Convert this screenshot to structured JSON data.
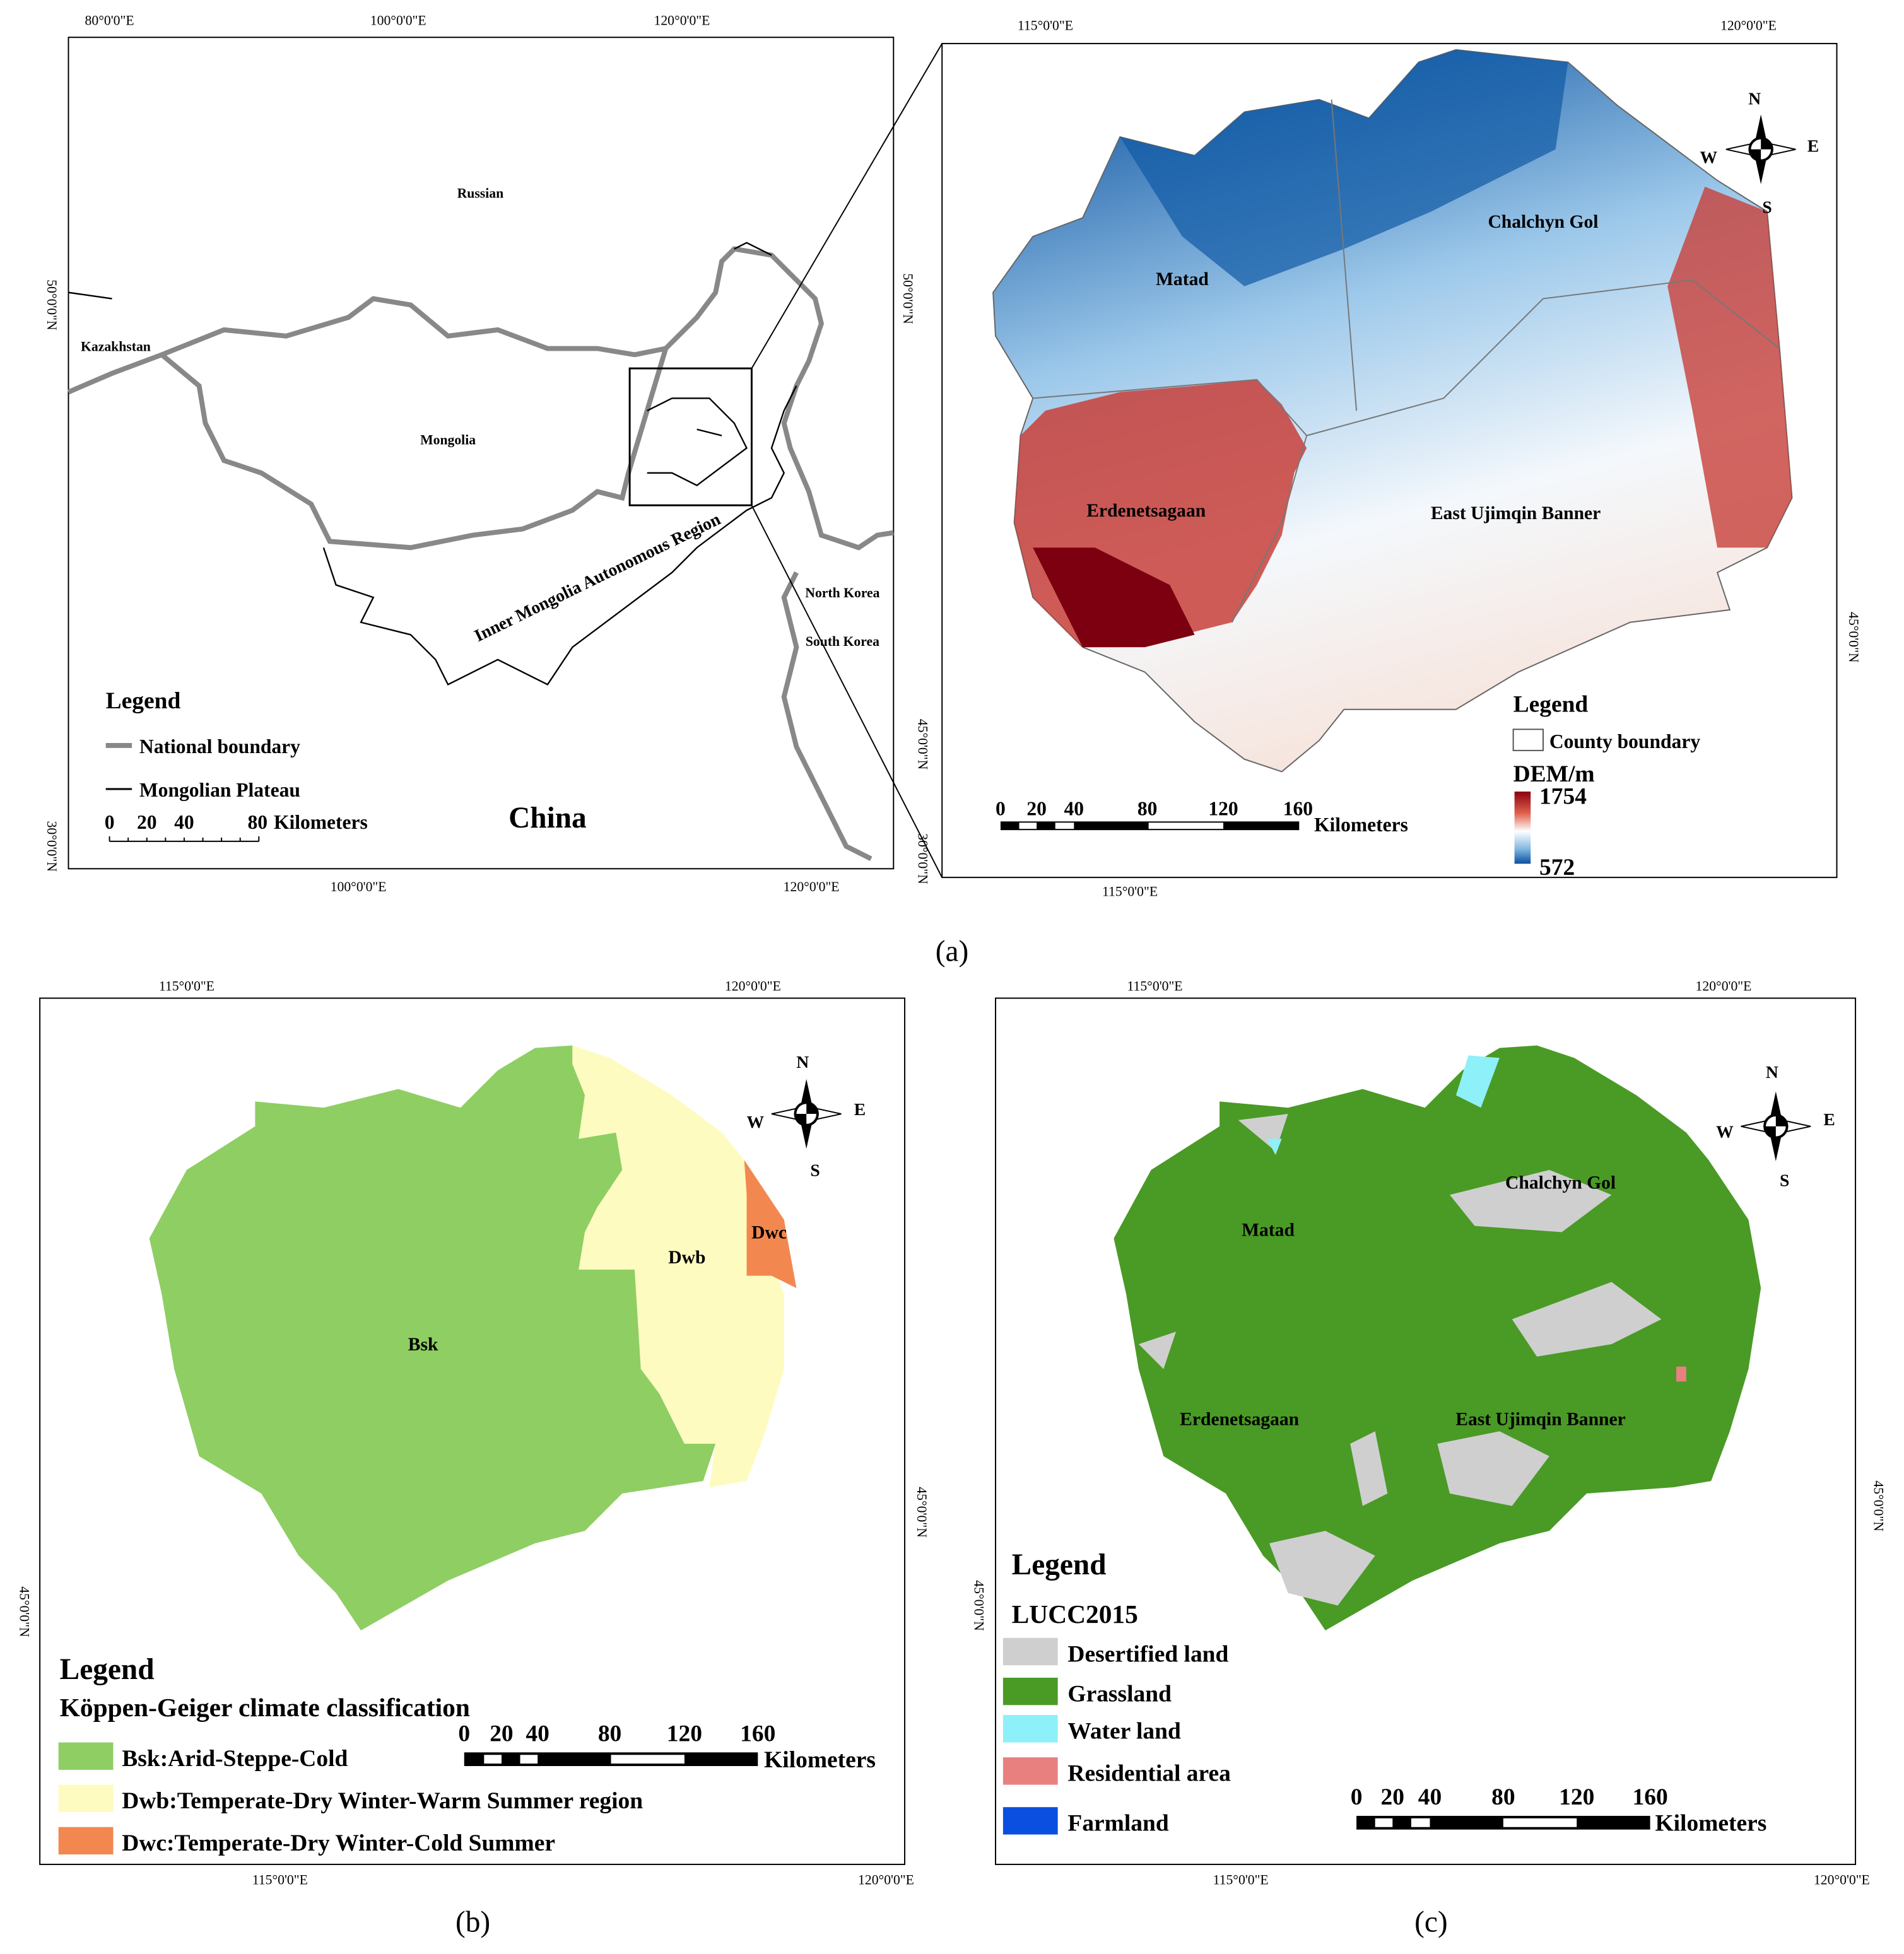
{
  "panel_a": {
    "caption": "(a)",
    "overview": {
      "top_labels": [
        "80°0'0\"E",
        "100°0'0\"E",
        "120°0'0\"E"
      ],
      "bottom_labels": [
        "100°0'0\"E",
        "120°0'0\"E"
      ],
      "left_labels": [
        "50°0'0\"N",
        "30°0'0\"N"
      ],
      "right_labels": [
        "50°0'0\"N",
        "45°0'0\"N",
        "30°0'0\"N"
      ],
      "places": [
        "Russian",
        "Kazakhstan",
        "Mongolia",
        "Inner Mongolia Autonomous Region",
        "North Korea",
        "South Korea",
        "China"
      ],
      "legend": {
        "title": "Legend",
        "items": [
          "National boundary",
          "Mongolian Plateau"
        ]
      },
      "scale_bar": {
        "ticks": [
          0,
          20,
          40,
          80
        ],
        "unit": "Kilometers"
      }
    },
    "dem": {
      "top_labels": [
        "115°0'0\"E",
        "120°0'0\"E"
      ],
      "bottom_labels": [
        "115°0'0\"E"
      ],
      "right_labels": [
        "45°0'0\"N"
      ],
      "regions": [
        "Matad",
        "Chalchyn Gol",
        "Erdenetsagaan",
        "East Ujimqin Banner"
      ],
      "compass": [
        "N",
        "W",
        "E",
        "S"
      ],
      "legend": {
        "title": "Legend",
        "items": [
          "County boundary"
        ],
        "ramp_title": "DEM/m",
        "ramp_max": 1754,
        "ramp_min": 572
      },
      "scale_bar": {
        "ticks": [
          0,
          20,
          40,
          80,
          120,
          160
        ],
        "unit": "Kilometers"
      }
    }
  },
  "panel_b": {
    "caption": "(b)",
    "top_labels": [
      "115°0'0\"E",
      "120°0'0\"E"
    ],
    "bottom_labels": [
      "115°0'0\"E",
      "120°0'0\"E"
    ],
    "left_labels": [
      "45°0'0\"N"
    ],
    "right_labels": [
      "45°0'0\"N"
    ],
    "regions": [
      "Bsk",
      "Dwb",
      "Dwc"
    ],
    "compass": [
      "N",
      "W",
      "E",
      "S"
    ],
    "legend": {
      "title": "Legend",
      "subtitle": "Köppen-Geiger climate classification",
      "items": [
        "Bsk:Arid-Steppe-Cold",
        "Dwb:Temperate-Dry Winter-Warm Summer region",
        "Dwc:Temperate-Dry Winter-Cold Summer"
      ]
    },
    "scale_bar": {
      "ticks": [
        0,
        20,
        40,
        80,
        120,
        160
      ],
      "unit": "Kilometers"
    }
  },
  "panel_c": {
    "caption": "(c)",
    "top_labels": [
      "115°0'0\"E",
      "120°0'0\"E"
    ],
    "bottom_labels": [
      "115°0'0\"E",
      "120°0'0\"E"
    ],
    "left_labels": [
      "45°0'0\"N"
    ],
    "right_labels": [
      "45°0'0\"N"
    ],
    "regions": [
      "Matad",
      "Chalchyn Gol",
      "Erdenetsagaan",
      "East Ujimqin Banner"
    ],
    "compass": [
      "N",
      "W",
      "E",
      "S"
    ],
    "legend": {
      "title": "Legend",
      "subtitle": "LUCC2015",
      "items": [
        "Desertified land",
        "Grassland",
        "Water land",
        "Residential area",
        "Farmland"
      ]
    },
    "scale_bar": {
      "ticks": [
        0,
        20,
        40,
        80,
        120,
        160
      ],
      "unit": "Kilometers"
    }
  }
}
